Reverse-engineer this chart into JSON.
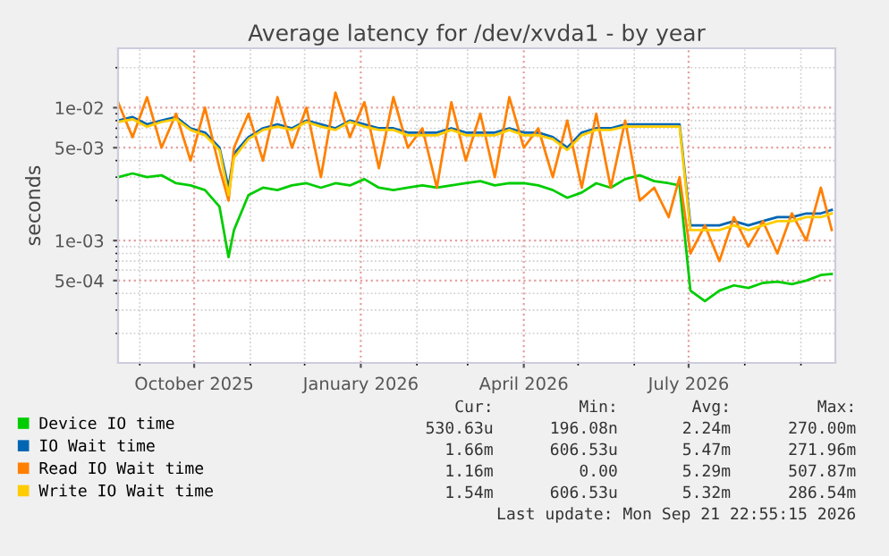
{
  "chart_data": {
    "type": "line",
    "title": "Average latency for /dev/xvda1 - by year",
    "ylabel": "seconds",
    "x": [
      "2025-08-20",
      "2025-08-28",
      "2025-09-05",
      "2025-09-13",
      "2025-09-21",
      "2025-09-29",
      "2025-10-07",
      "2025-10-15",
      "2025-10-20",
      "2025-10-23",
      "2025-10-31",
      "2025-11-08",
      "2025-11-16",
      "2025-11-24",
      "2025-12-02",
      "2025-12-10",
      "2025-12-18",
      "2025-12-26",
      "2026-01-03",
      "2026-01-11",
      "2026-01-19",
      "2026-01-27",
      "2026-02-04",
      "2026-02-12",
      "2026-02-20",
      "2026-02-28",
      "2026-03-08",
      "2026-03-16",
      "2026-03-24",
      "2026-04-01",
      "2026-04-09",
      "2026-04-17",
      "2026-04-25",
      "2026-05-03",
      "2026-05-11",
      "2026-05-19",
      "2026-05-27",
      "2026-06-04",
      "2026-06-12",
      "2026-06-20",
      "2026-06-26",
      "2026-07-02",
      "2026-07-10",
      "2026-07-18",
      "2026-07-26",
      "2026-08-03",
      "2026-08-11",
      "2026-08-19",
      "2026-08-27",
      "2026-09-04",
      "2026-09-12",
      "2026-09-18"
    ],
    "series": [
      {
        "name": "Device IO time",
        "color": "#00cc00",
        "values": [
          0.003,
          0.0032,
          0.003,
          0.0031,
          0.0027,
          0.0026,
          0.0024,
          0.0018,
          0.00075,
          0.0012,
          0.0022,
          0.0025,
          0.0024,
          0.0026,
          0.0027,
          0.0025,
          0.0027,
          0.0026,
          0.0029,
          0.0025,
          0.0024,
          0.0025,
          0.0026,
          0.0025,
          0.0026,
          0.0027,
          0.0028,
          0.0026,
          0.0027,
          0.0027,
          0.0026,
          0.0024,
          0.0021,
          0.0023,
          0.0027,
          0.0025,
          0.0029,
          0.0031,
          0.0028,
          0.0027,
          0.0026,
          0.00042,
          0.00035,
          0.00042,
          0.00046,
          0.00044,
          0.00048,
          0.00049,
          0.00047,
          0.0005,
          0.00055,
          0.00056
        ]
      },
      {
        "name": "IO Wait time",
        "color": "#0066b3",
        "values": [
          0.008,
          0.0085,
          0.0075,
          0.008,
          0.0085,
          0.007,
          0.0065,
          0.005,
          0.0025,
          0.0045,
          0.006,
          0.007,
          0.0075,
          0.007,
          0.008,
          0.0075,
          0.007,
          0.008,
          0.0075,
          0.007,
          0.007,
          0.0065,
          0.0065,
          0.0065,
          0.007,
          0.0065,
          0.0065,
          0.0065,
          0.007,
          0.0065,
          0.0065,
          0.006,
          0.005,
          0.0065,
          0.007,
          0.007,
          0.0075,
          0.0075,
          0.0075,
          0.0075,
          0.0075,
          0.0013,
          0.0013,
          0.0013,
          0.0014,
          0.0013,
          0.0014,
          0.0015,
          0.0015,
          0.0016,
          0.0016,
          0.0017
        ]
      },
      {
        "name": "Read IO Wait time",
        "color": "#ff8000",
        "values": [
          0.011,
          0.006,
          0.012,
          0.005,
          0.009,
          0.004,
          0.01,
          0.0035,
          0.002,
          0.005,
          0.009,
          0.004,
          0.012,
          0.005,
          0.01,
          0.003,
          0.013,
          0.006,
          0.011,
          0.0035,
          0.012,
          0.005,
          0.007,
          0.0025,
          0.011,
          0.004,
          0.009,
          0.003,
          0.012,
          0.005,
          0.007,
          0.003,
          0.008,
          0.0025,
          0.009,
          0.0025,
          0.008,
          0.002,
          0.0025,
          0.0015,
          0.003,
          0.0008,
          0.0013,
          0.0007,
          0.0015,
          0.0009,
          0.0014,
          0.0008,
          0.0016,
          0.001,
          0.0025,
          0.0012
        ]
      },
      {
        "name": "Write IO Wait time",
        "color": "#ffcc00",
        "values": [
          0.0078,
          0.0082,
          0.0072,
          0.0078,
          0.0082,
          0.0068,
          0.0062,
          0.0048,
          0.0022,
          0.0042,
          0.0058,
          0.0068,
          0.0072,
          0.0068,
          0.0078,
          0.0072,
          0.0068,
          0.0078,
          0.0072,
          0.0068,
          0.0068,
          0.0062,
          0.0062,
          0.0062,
          0.0068,
          0.0062,
          0.0062,
          0.0062,
          0.0068,
          0.0062,
          0.0062,
          0.0058,
          0.0048,
          0.0062,
          0.0068,
          0.0068,
          0.0072,
          0.0072,
          0.0072,
          0.0072,
          0.0072,
          0.0012,
          0.0012,
          0.0012,
          0.0013,
          0.0012,
          0.0013,
          0.0014,
          0.0014,
          0.0015,
          0.0015,
          0.0016
        ]
      }
    ],
    "log": "y",
    "ylim": [
      0.00012,
      0.028
    ],
    "yticks": [
      {
        "value": 0.0005,
        "label": "5e-04"
      },
      {
        "value": 0.001,
        "label": "1e-03"
      },
      {
        "value": 0.005,
        "label": "5e-03"
      },
      {
        "value": 0.01,
        "label": "1e-02"
      }
    ],
    "xlim": [
      "2025-08-20",
      "2026-09-20"
    ],
    "xticks": [
      {
        "value": "2025-10-01",
        "label": "October 2025"
      },
      {
        "value": "2026-01-01",
        "label": "January 2026"
      },
      {
        "value": "2026-04-01",
        "label": "April 2026"
      },
      {
        "value": "2026-07-01",
        "label": "July 2026"
      }
    ],
    "grid": true,
    "legend": "bottom left",
    "annotations": [
      "Cur:",
      "Min:",
      "Avg:",
      "Max:",
      "530.63u",
      "196.08n",
      "2.24m",
      "270.00m",
      "1.66m",
      "606.53u",
      "5.47m",
      "271.96m",
      "1.16m",
      "0.00",
      "5.29m",
      "507.87m",
      "1.54m",
      "606.53u",
      "5.32m",
      "286.54m",
      "Last update: Mon Sep 21 22:55:15 2026"
    ]
  }
}
